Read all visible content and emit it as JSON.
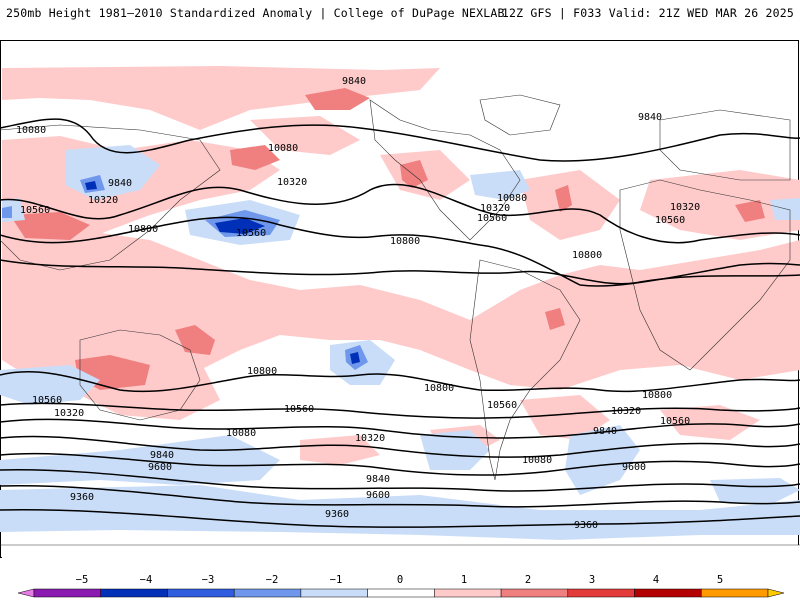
{
  "header": {
    "title_left": "250mb Height 1981–2010 Standardized Anomaly | College of DuPage NEXLAB",
    "title_right": "12Z GFS | F033 Valid: 21Z WED MAR 26 2025"
  },
  "contours": {
    "labels": [
      "9840",
      "10080",
      "10320",
      "10560",
      "10800",
      "9600",
      "9360"
    ]
  },
  "colorbar": {
    "ticks": [
      "−5",
      "−4",
      "−3",
      "−2",
      "−1",
      "0",
      "1",
      "2",
      "3",
      "4",
      "5"
    ],
    "colors": [
      "#e67be6",
      "#8a1ab0",
      "#0030b8",
      "#2e5de0",
      "#6f97ec",
      "#c9ddf8",
      "#ffffff",
      "#ffcaca",
      "#f07f7f",
      "#e33a3a",
      "#b30000",
      "#ff9a00",
      "#ffc800"
    ]
  }
}
